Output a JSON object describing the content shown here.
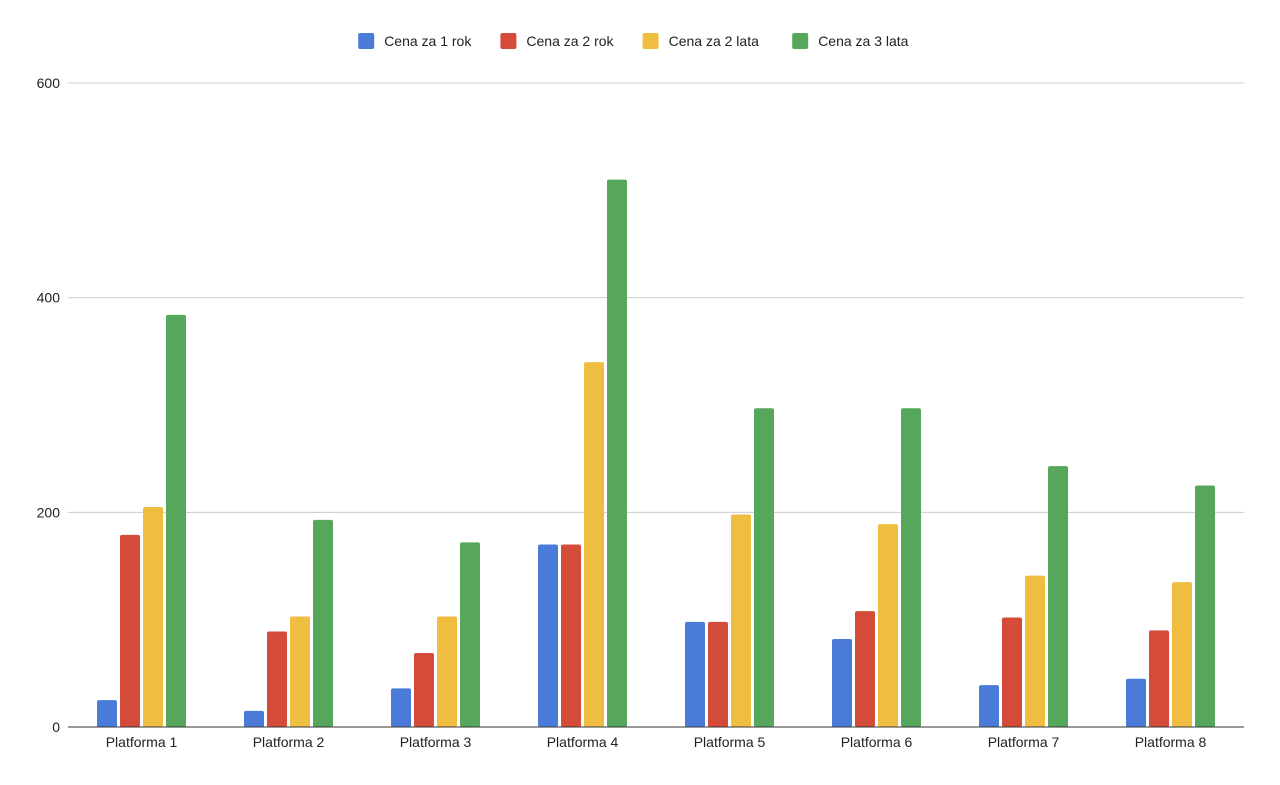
{
  "chart_data": {
    "type": "bar",
    "title": "",
    "xlabel": "",
    "ylabel": "",
    "categories": [
      "Platforma 1",
      "Platforma 2",
      "Platforma 3",
      "Platforma 4",
      "Platforma 5",
      "Platforma 6",
      "Platforma 7",
      "Platforma 8"
    ],
    "series": [
      {
        "name": "Cena za 1 rok",
        "color": "#4a7bd8",
        "values": [
          25,
          15,
          36,
          170,
          98,
          82,
          39,
          45
        ]
      },
      {
        "name": "Cena za 2 rok",
        "color": "#d44b3a",
        "values": [
          179,
          89,
          69,
          170,
          98,
          108,
          102,
          90
        ]
      },
      {
        "name": "Cena za 2 lata",
        "color": "#efbd40",
        "values": [
          205,
          103,
          103,
          340,
          198,
          189,
          141,
          135
        ]
      },
      {
        "name": "Cena za 3 lata",
        "color": "#56a65b",
        "values": [
          384,
          193,
          172,
          510,
          297,
          297,
          243,
          225
        ]
      }
    ],
    "ylim": [
      0,
      600
    ],
    "yticks": [
      0,
      200,
      400,
      600
    ],
    "grid": true,
    "legend_position": "top"
  }
}
